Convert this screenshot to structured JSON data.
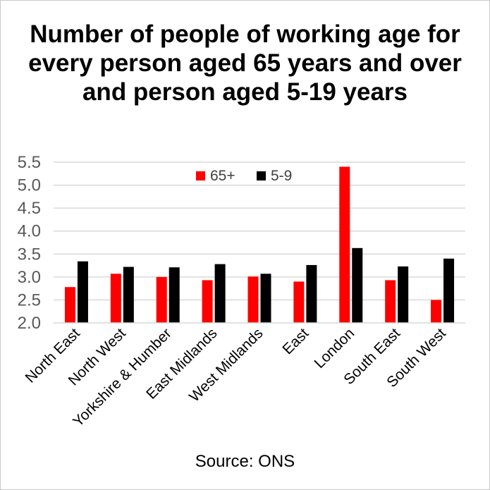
{
  "chart_data": {
    "type": "bar",
    "title": "Number of people of working age for every person aged 65 years and over and person aged 5-19 years",
    "source": "Source: ONS",
    "categories": [
      "North East",
      "North West",
      "Yorkshire & Humber",
      "East Midlands",
      "West Midlands",
      "East",
      "London",
      "South East",
      "South West"
    ],
    "series": [
      {
        "name": "65+",
        "color": "#ff0000",
        "values": [
          2.78,
          3.07,
          3.0,
          2.93,
          3.01,
          2.9,
          5.4,
          2.93,
          2.5
        ]
      },
      {
        "name": "5-9",
        "color": "#000000",
        "values": [
          3.34,
          3.22,
          3.21,
          3.28,
          3.07,
          3.26,
          3.63,
          3.23,
          3.4
        ]
      }
    ],
    "yticks": [
      "2.0",
      "2.5",
      "3.0",
      "3.5",
      "4.0",
      "4.5",
      "5.0",
      "5.5"
    ],
    "ylim": [
      2.0,
      5.5
    ],
    "grid": true,
    "legend_position": "top-center"
  }
}
